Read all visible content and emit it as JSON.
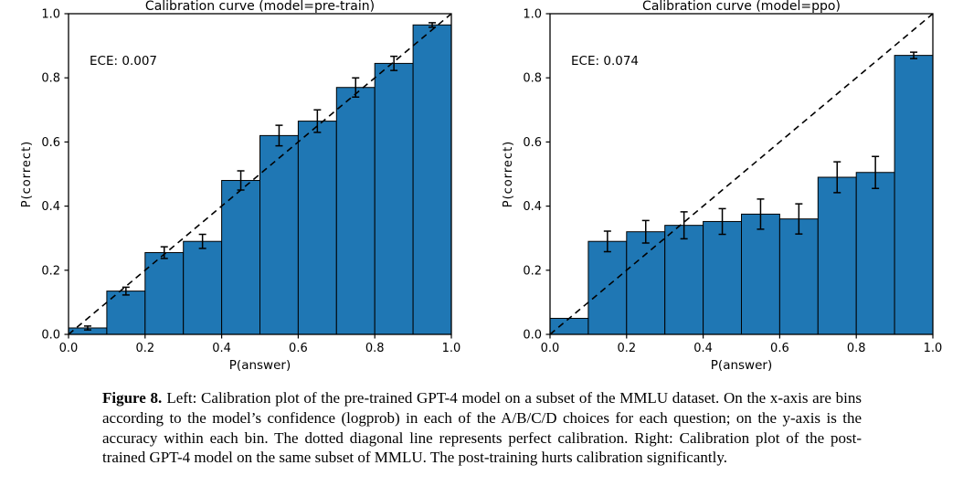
{
  "colors": {
    "bar_fill": "#1f77b4",
    "bar_edge": "#000000",
    "axis": "#000000",
    "text": "#000000",
    "diagonal": "#000000"
  },
  "chart_data": [
    {
      "id": "pretrain",
      "type": "bar",
      "title": "Calibration curve (model=pre-train)",
      "annotation": "ECE: 0.007",
      "xlabel": "P(answer)",
      "ylabel": "P(correct)",
      "xlim": [
        0.0,
        1.0
      ],
      "ylim": [
        0.0,
        1.0
      ],
      "xticks": [
        0.0,
        0.2,
        0.4,
        0.6,
        0.8,
        1.0
      ],
      "yticks": [
        0.0,
        0.2,
        0.4,
        0.6,
        0.8,
        1.0
      ],
      "grid": false,
      "legend": null,
      "diagonal_line": true,
      "bin_width": 0.1,
      "bin_centers": [
        0.05,
        0.15,
        0.25,
        0.35,
        0.45,
        0.55,
        0.65,
        0.75,
        0.85,
        0.95
      ],
      "values": [
        0.02,
        0.135,
        0.255,
        0.29,
        0.48,
        0.62,
        0.665,
        0.77,
        0.845,
        0.965
      ],
      "errors": [
        0.006,
        0.012,
        0.018,
        0.022,
        0.03,
        0.032,
        0.035,
        0.03,
        0.022,
        0.007
      ]
    },
    {
      "id": "ppo",
      "type": "bar",
      "title": "Calibration curve (model=ppo)",
      "annotation": "ECE: 0.074",
      "xlabel": "P(answer)",
      "ylabel": "P(correct)",
      "xlim": [
        0.0,
        1.0
      ],
      "ylim": [
        0.0,
        1.0
      ],
      "xticks": [
        0.0,
        0.2,
        0.4,
        0.6,
        0.8,
        1.0
      ],
      "yticks": [
        0.0,
        0.2,
        0.4,
        0.6,
        0.8,
        1.0
      ],
      "grid": false,
      "legend": null,
      "diagonal_line": true,
      "bin_width": 0.1,
      "bin_centers": [
        0.05,
        0.15,
        0.25,
        0.35,
        0.45,
        0.55,
        0.65,
        0.75,
        0.85,
        0.95
      ],
      "values": [
        0.05,
        0.29,
        0.32,
        0.34,
        0.352,
        0.375,
        0.36,
        0.49,
        0.505,
        0.87
      ],
      "errors": [
        0,
        0.032,
        0.035,
        0.042,
        0.04,
        0.047,
        0.047,
        0.048,
        0.05,
        0.01
      ]
    }
  ],
  "caption": {
    "label": "Figure 8.",
    "text": "Left: Calibration plot of the pre-trained GPT-4 model on a subset of the MMLU dataset. On the x-axis are bins according to the model’s confidence (logprob) in each of the A/B/C/D choices for each question; on the y-axis is the accuracy within each bin. The dotted diagonal line represents perfect calibration. Right: Calibration plot of the post-trained GPT-4 model on the same subset of MMLU. The post-training hurts calibration significantly."
  }
}
